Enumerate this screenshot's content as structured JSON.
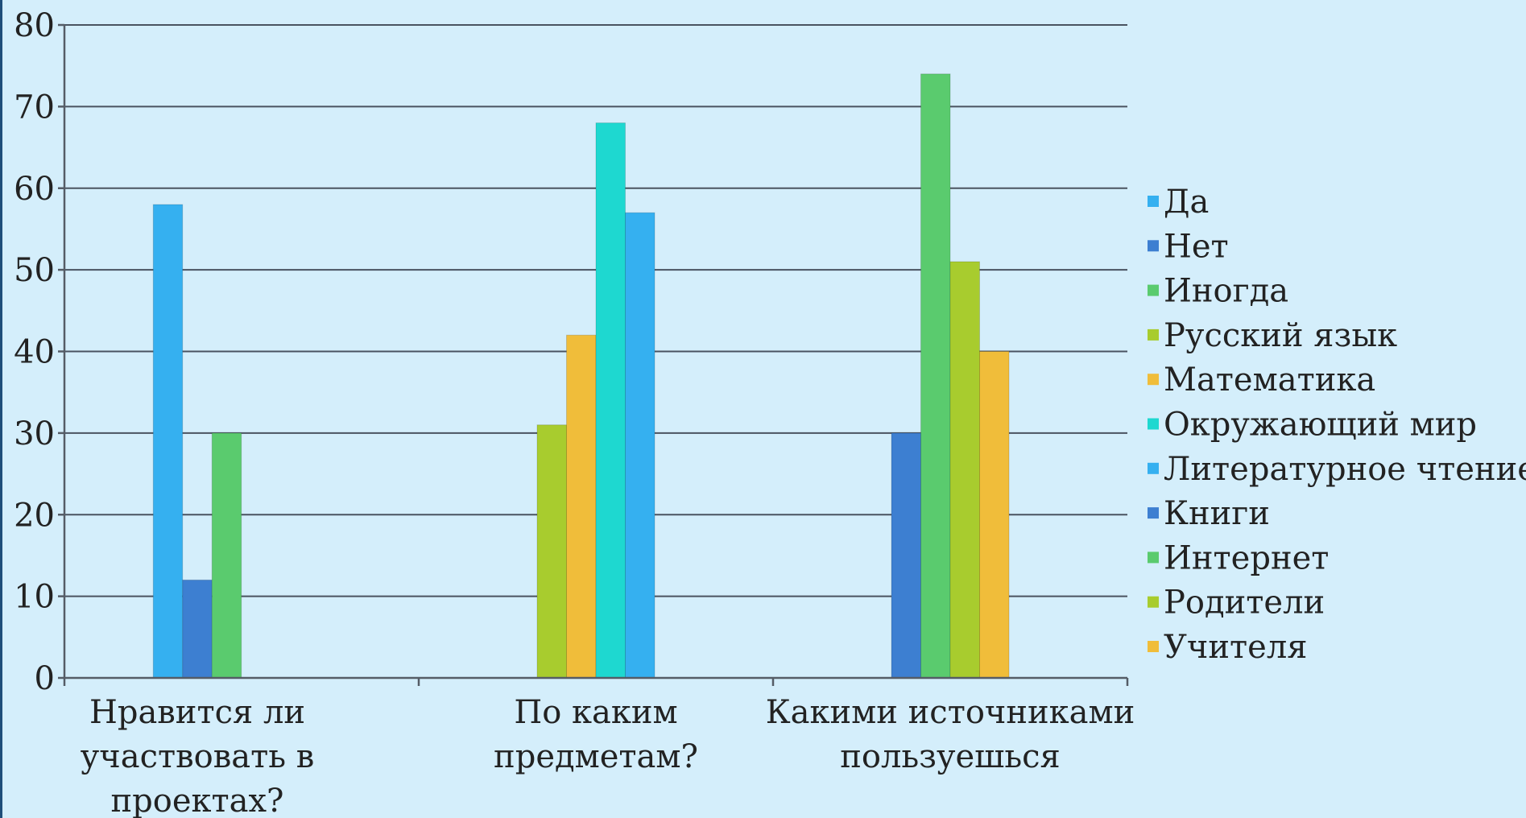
{
  "chart_data": {
    "type": "bar",
    "title": "",
    "xlabel": "",
    "ylabel": "",
    "ylim": [
      0,
      80
    ],
    "yticks": [
      "0",
      "10",
      "20",
      "30",
      "40",
      "50",
      "60",
      "70",
      "80"
    ],
    "grid": true,
    "legend_position": "right",
    "categories": [
      "Нравится ли участвовать в проектах?",
      "По каким предметам?",
      "Какими источниками пользуешься"
    ],
    "category_label_lines": [
      [
        "Нравится ли",
        "участвовать в",
        "проектах?"
      ],
      [
        "По каким",
        "предметам?"
      ],
      [
        "Какими источниками",
        "пользуешься"
      ]
    ],
    "series": [
      {
        "name": "Да",
        "color": "#35b0f0",
        "values": [
          58,
          null,
          null
        ]
      },
      {
        "name": "Нет",
        "color": "#3d7fd1",
        "values": [
          12,
          null,
          null
        ]
      },
      {
        "name": "Иногда",
        "color": "#5acb6e",
        "values": [
          30,
          null,
          null
        ]
      },
      {
        "name": "Русский язык",
        "color": "#a8cc2e",
        "values": [
          null,
          31,
          null
        ]
      },
      {
        "name": "Математика",
        "color": "#f0bd3a",
        "values": [
          null,
          42,
          null
        ]
      },
      {
        "name": "Окружающий мир",
        "color": "#1ed8d0",
        "values": [
          null,
          68,
          null
        ]
      },
      {
        "name": "Литературное чтение",
        "color": "#35b0f0",
        "values": [
          null,
          57,
          null
        ]
      },
      {
        "name": "Книги",
        "color": "#3d7fd1",
        "values": [
          null,
          null,
          30
        ]
      },
      {
        "name": "Интернет",
        "color": "#5acb6e",
        "values": [
          null,
          null,
          74
        ]
      },
      {
        "name": "Родители",
        "color": "#a8cc2e",
        "values": [
          null,
          null,
          51
        ]
      },
      {
        "name": "Учителя",
        "color": "#f0bd3a",
        "values": [
          null,
          null,
          40
        ]
      }
    ]
  },
  "colors": {
    "background": "#d4eefb",
    "grid": "#4a5360",
    "text": "#222222"
  }
}
